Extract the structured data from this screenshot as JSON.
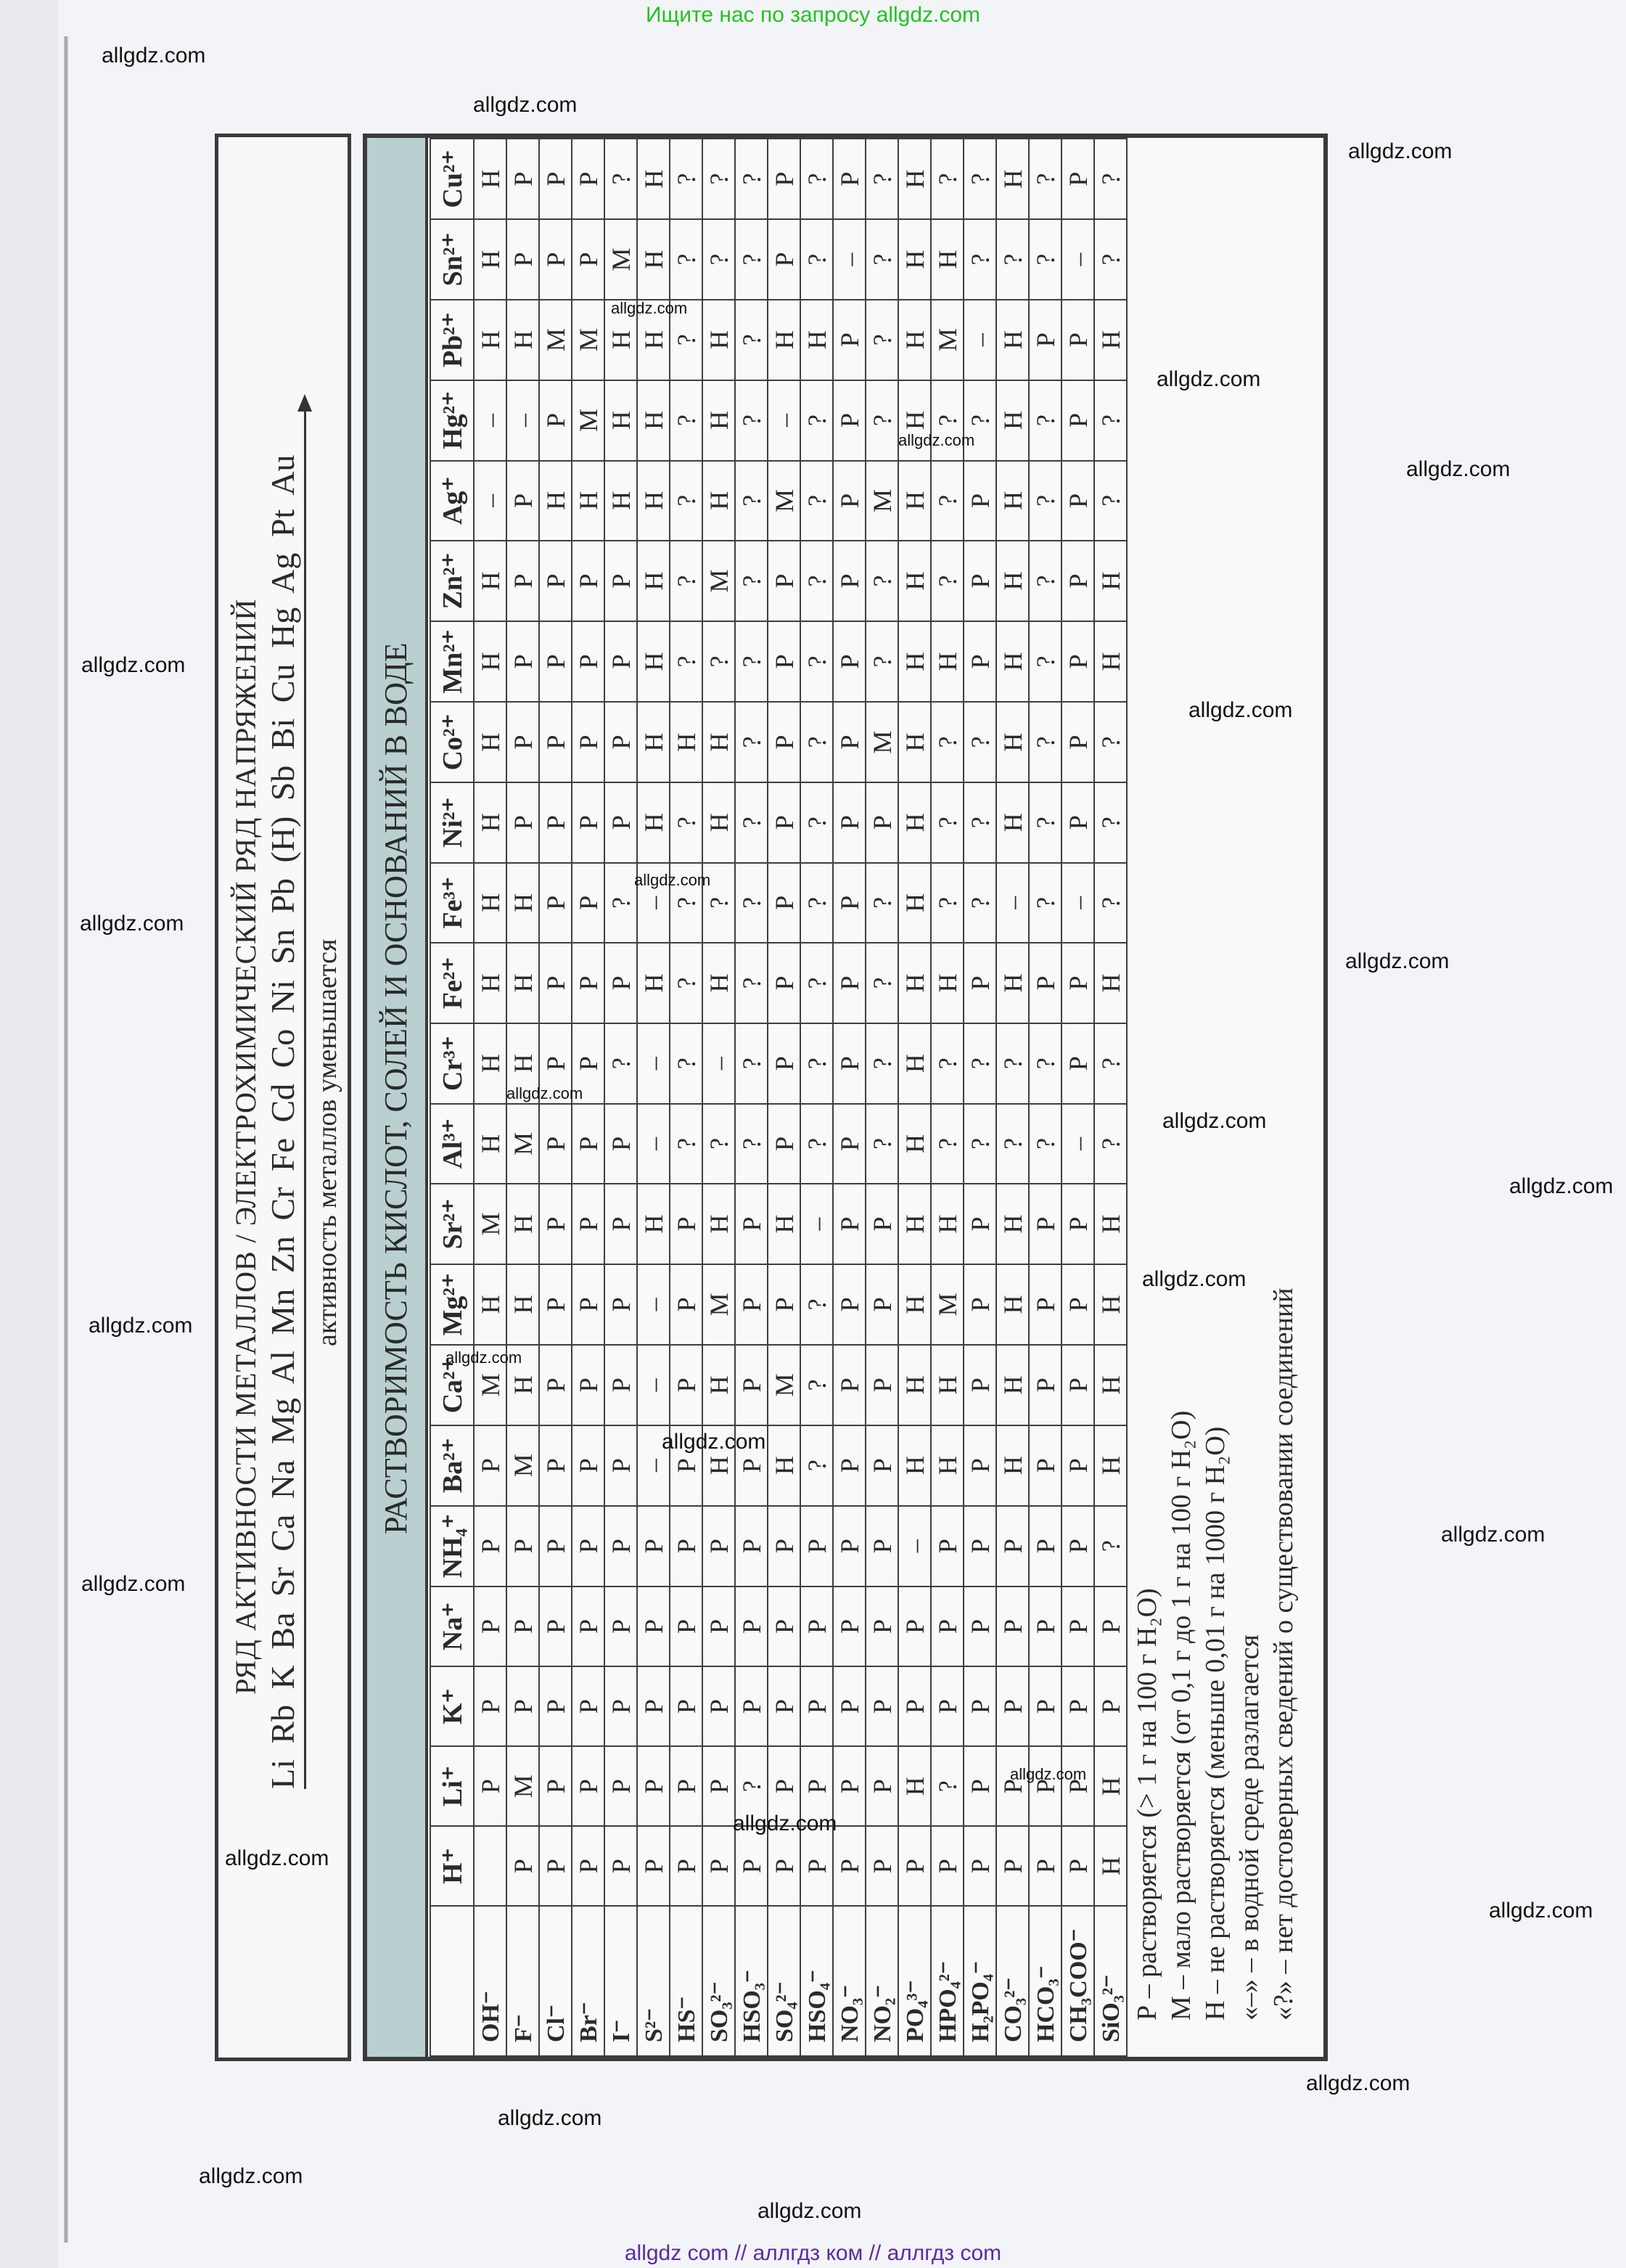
{
  "top_note": "Ищите нас по запросу allgdz.com",
  "bottom_links": "allgdz com  //  аллгдз ком  //  аллгдз com",
  "watermark": "allgdz.com",
  "activity": {
    "title": "РЯД АКТИВНОСТИ МЕТАЛЛОВ / ЭЛЕКТРОХИМИЧЕСКИЙ РЯД НАПРЯЖЕНИЙ",
    "series": "Li Rb K Ba Sr Ca Na Mg Al Mn Zn Cr Fe Cd Co Ni Sn Pb (H) Sb Bi Cu Hg Ag Pt Au",
    "direction": "активность металлов уменьшается"
  },
  "solubility": {
    "title": "РАСТВОРИМОСТЬ КИСЛОТ, СОЛЕЙ И ОСНОВАНИЙ В ВОДЕ",
    "cations": [
      "H⁺",
      "Li⁺",
      "K⁺",
      "Na⁺",
      "NH₄⁺",
      "Ba²⁺",
      "Ca²⁺",
      "Mg²⁺",
      "Sr²⁺",
      "Al³⁺",
      "Cr³⁺",
      "Fe²⁺",
      "Fe³⁺",
      "Ni²⁺",
      "Co²⁺",
      "Mn²⁺",
      "Zn²⁺",
      "Ag⁺",
      "Hg²⁺",
      "Pb²⁺",
      "Sn²⁺",
      "Cu²⁺"
    ],
    "anions": [
      "OH⁻",
      "F⁻",
      "Cl⁻",
      "Br⁻",
      "I⁻",
      "S²⁻",
      "HS⁻",
      "SO₃²⁻",
      "HSO₃⁻",
      "SO₄²⁻",
      "HSO₄⁻",
      "NO₃⁻",
      "NO₂⁻",
      "PO₄³⁻",
      "HPO₄²⁻",
      "H₂PO₄⁻",
      "CO₃²⁻",
      "HCO₃⁻",
      "CH₃COO⁻",
      "SiO₃²⁻"
    ],
    "values_by_cation": {
      "H⁺": [
        "",
        "Р",
        "Р",
        "Р",
        "Р",
        "Р",
        "Р",
        "Р",
        "Р",
        "Р",
        "Р",
        "Р",
        "Р",
        "Р",
        "Р",
        "Р",
        "Р",
        "Р",
        "Р",
        "Н"
      ],
      "Li⁺": [
        "Р",
        "М",
        "Р",
        "Р",
        "Р",
        "Р",
        "Р",
        "Р",
        "?",
        "Р",
        "Р",
        "Р",
        "Р",
        "Н",
        "?",
        "Р",
        "Р",
        "Р",
        "Р",
        "Н"
      ],
      "K⁺": [
        "Р",
        "Р",
        "Р",
        "Р",
        "Р",
        "Р",
        "Р",
        "Р",
        "Р",
        "Р",
        "Р",
        "Р",
        "Р",
        "Р",
        "Р",
        "Р",
        "Р",
        "Р",
        "Р",
        "Р"
      ],
      "Na⁺": [
        "Р",
        "Р",
        "Р",
        "Р",
        "Р",
        "Р",
        "Р",
        "Р",
        "Р",
        "Р",
        "Р",
        "Р",
        "Р",
        "Р",
        "Р",
        "Р",
        "Р",
        "Р",
        "Р",
        "Р"
      ],
      "NH₄⁺": [
        "Р",
        "Р",
        "Р",
        "Р",
        "Р",
        "Р",
        "Р",
        "Р",
        "Р",
        "Р",
        "Р",
        "Р",
        "Р",
        "–",
        "Р",
        "Р",
        "Р",
        "Р",
        "Р",
        "?"
      ],
      "Ba²⁺": [
        "Р",
        "М",
        "Р",
        "Р",
        "Р",
        "–",
        "Р",
        "Н",
        "Р",
        "Н",
        "?",
        "Р",
        "Р",
        "Н",
        "Н",
        "Р",
        "Н",
        "Р",
        "Р",
        "Н"
      ],
      "Ca²⁺": [
        "М",
        "Н",
        "Р",
        "Р",
        "Р",
        "–",
        "Р",
        "Н",
        "Р",
        "М",
        "?",
        "Р",
        "Р",
        "Н",
        "Н",
        "Р",
        "Н",
        "Р",
        "Р",
        "Н"
      ],
      "Mg²⁺": [
        "Н",
        "Н",
        "Р",
        "Р",
        "Р",
        "–",
        "Р",
        "М",
        "Р",
        "Р",
        "?",
        "Р",
        "Р",
        "Н",
        "М",
        "Р",
        "Н",
        "Р",
        "Р",
        "Н"
      ],
      "Sr²⁺": [
        "М",
        "Н",
        "Р",
        "Р",
        "Р",
        "Н",
        "Р",
        "Н",
        "Р",
        "Н",
        "–",
        "Р",
        "Р",
        "Н",
        "Н",
        "Р",
        "Н",
        "Р",
        "Р",
        "Н"
      ],
      "Al³⁺": [
        "Н",
        "М",
        "Р",
        "Р",
        "Р",
        "–",
        "?",
        "?",
        "?",
        "Р",
        "?",
        "Р",
        "?",
        "Н",
        "?",
        "?",
        "?",
        "?",
        "–",
        "?"
      ],
      "Cr³⁺": [
        "Н",
        "Н",
        "Р",
        "Р",
        "?",
        "–",
        "?",
        "–",
        "?",
        "Р",
        "?",
        "Р",
        "?",
        "Н",
        "?",
        "?",
        "?",
        "?",
        "Р",
        "?"
      ],
      "Fe²⁺": [
        "Н",
        "Н",
        "Р",
        "Р",
        "Р",
        "Н",
        "?",
        "Н",
        "?",
        "Р",
        "?",
        "Р",
        "?",
        "Н",
        "Н",
        "Р",
        "Н",
        "Р",
        "Р",
        "Н"
      ],
      "Fe³⁺": [
        "Н",
        "Н",
        "Р",
        "Р",
        "?",
        "–",
        "?",
        "?",
        "?",
        "Р",
        "?",
        "Р",
        "?",
        "Н",
        "?",
        "?",
        "–",
        "?",
        "–",
        "?"
      ],
      "Ni²⁺": [
        "Н",
        "Р",
        "Р",
        "Р",
        "Р",
        "Н",
        "?",
        "Н",
        "?",
        "Р",
        "?",
        "Р",
        "Р",
        "Н",
        "?",
        "?",
        "Н",
        "?",
        "Р",
        "?"
      ],
      "Co²⁺": [
        "Н",
        "Р",
        "Р",
        "Р",
        "Р",
        "Н",
        "Н",
        "Н",
        "?",
        "Р",
        "?",
        "Р",
        "М",
        "Н",
        "?",
        "?",
        "Н",
        "?",
        "Р",
        "?"
      ],
      "Mn²⁺": [
        "Н",
        "Р",
        "Р",
        "Р",
        "Р",
        "Н",
        "?",
        "?",
        "?",
        "Р",
        "?",
        "Р",
        "?",
        "Н",
        "Н",
        "Р",
        "Н",
        "?",
        "Р",
        "Н"
      ],
      "Zn²⁺": [
        "Н",
        "Р",
        "Р",
        "Р",
        "Р",
        "Н",
        "?",
        "М",
        "?",
        "Р",
        "?",
        "Р",
        "?",
        "Н",
        "?",
        "Р",
        "Н",
        "?",
        "Р",
        "Н"
      ],
      "Ag⁺": [
        "–",
        "Р",
        "Н",
        "Н",
        "Н",
        "Н",
        "?",
        "Н",
        "?",
        "М",
        "?",
        "Р",
        "М",
        "Н",
        "?",
        "Р",
        "Н",
        "?",
        "Р",
        "?"
      ],
      "Hg²⁺": [
        "–",
        "–",
        "Р",
        "М",
        "Н",
        "Н",
        "?",
        "Н",
        "?",
        "–",
        "?",
        "Р",
        "?",
        "Н",
        "?",
        "?",
        "Н",
        "?",
        "Р",
        "?"
      ],
      "Pb²⁺": [
        "Н",
        "Н",
        "М",
        "М",
        "Н",
        "Н",
        "?",
        "Н",
        "?",
        "Н",
        "Н",
        "Р",
        "?",
        "Н",
        "М",
        "–",
        "Н",
        "Р",
        "Р",
        "Н"
      ],
      "Sn²⁺": [
        "Н",
        "Р",
        "Р",
        "Р",
        "М",
        "Н",
        "?",
        "?",
        "?",
        "Р",
        "?",
        "–",
        "?",
        "Н",
        "Н",
        "?",
        "?",
        "?",
        "–",
        "?"
      ],
      "Cu²⁺": [
        "Н",
        "Р",
        "Р",
        "Р",
        "?",
        "Н",
        "?",
        "?",
        "?",
        "Р",
        "?",
        "Р",
        "?",
        "Н",
        "?",
        "?",
        "Н",
        "?",
        "Р",
        "?"
      ]
    },
    "legend": [
      "Р – растворяется (> 1 г на 100 г H₂O)",
      "М – мало растворяется (от 0,1 г до 1 г на 100 г H₂O)",
      "Н – не растворяется (меньше 0,01 г на 1000 г H₂O)",
      "«–» – в водной среде разлагается",
      "«?» – нет достоверных сведений о существовании соединений"
    ]
  }
}
